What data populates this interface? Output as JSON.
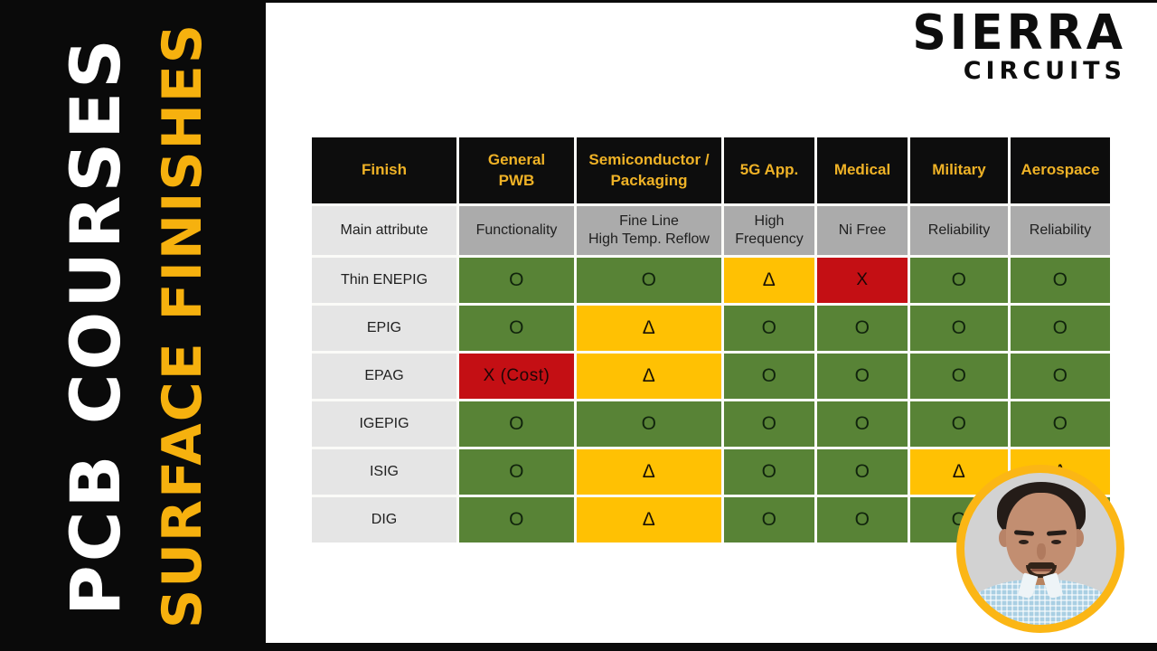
{
  "sidebar": {
    "course_label": "PCB COURSES",
    "topic_label": "SURFACE FINISHES"
  },
  "logo": {
    "brand": "SIERRA",
    "sub_brand": "CIRCUITS"
  },
  "table": {
    "columns": [
      {
        "label": "Finish",
        "attribute": "Main attribute"
      },
      {
        "label": "General\nPWB",
        "attribute": "Functionality"
      },
      {
        "label": "Semiconductor /\nPackaging",
        "attribute": "Fine Line\nHigh Temp. Reflow"
      },
      {
        "label": "5G App.",
        "attribute": "High\nFrequency"
      },
      {
        "label": "Medical",
        "attribute": "Ni Free"
      },
      {
        "label": "Military",
        "attribute": "Reliability"
      },
      {
        "label": "Aerospace",
        "attribute": "Reliability"
      }
    ],
    "rows": [
      {
        "finish": "Thin ENEPIG",
        "cells": [
          {
            "v": "O",
            "c": "green"
          },
          {
            "v": "O",
            "c": "green"
          },
          {
            "v": "Δ",
            "c": "yellow"
          },
          {
            "v": "X",
            "c": "red"
          },
          {
            "v": "O",
            "c": "green"
          },
          {
            "v": "O",
            "c": "green"
          }
        ]
      },
      {
        "finish": "EPIG",
        "cells": [
          {
            "v": "O",
            "c": "green"
          },
          {
            "v": "Δ",
            "c": "yellow"
          },
          {
            "v": "O",
            "c": "green"
          },
          {
            "v": "O",
            "c": "green"
          },
          {
            "v": "O",
            "c": "green"
          },
          {
            "v": "O",
            "c": "green"
          }
        ]
      },
      {
        "finish": "EPAG",
        "cells": [
          {
            "v": "X (Cost)",
            "c": "red"
          },
          {
            "v": "Δ",
            "c": "yellow"
          },
          {
            "v": "O",
            "c": "green"
          },
          {
            "v": "O",
            "c": "green"
          },
          {
            "v": "O",
            "c": "green"
          },
          {
            "v": "O",
            "c": "green"
          }
        ]
      },
      {
        "finish": "IGEPIG",
        "cells": [
          {
            "v": "O",
            "c": "green"
          },
          {
            "v": "O",
            "c": "green"
          },
          {
            "v": "O",
            "c": "green"
          },
          {
            "v": "O",
            "c": "green"
          },
          {
            "v": "O",
            "c": "green"
          },
          {
            "v": "O",
            "c": "green"
          }
        ]
      },
      {
        "finish": "ISIG",
        "cells": [
          {
            "v": "O",
            "c": "green"
          },
          {
            "v": "Δ",
            "c": "yellow"
          },
          {
            "v": "O",
            "c": "green"
          },
          {
            "v": "O",
            "c": "green"
          },
          {
            "v": "Δ",
            "c": "yellow"
          },
          {
            "v": "Δ",
            "c": "yellow"
          }
        ]
      },
      {
        "finish": "DIG",
        "cells": [
          {
            "v": "O",
            "c": "green"
          },
          {
            "v": "Δ",
            "c": "yellow"
          },
          {
            "v": "O",
            "c": "green"
          },
          {
            "v": "O",
            "c": "green"
          },
          {
            "v": "O",
            "c": "green"
          },
          {
            "v": "",
            "c": "green"
          }
        ]
      }
    ]
  },
  "chart_data": {
    "type": "table",
    "columns": [
      "Finish",
      "General PWB",
      "Semiconductor / Packaging",
      "5G App.",
      "Medical",
      "Military",
      "Aerospace"
    ],
    "main_attributes": [
      "Main attribute",
      "Functionality",
      "Fine Line High Temp. Reflow",
      "High Frequency",
      "Ni Free",
      "Reliability",
      "Reliability"
    ],
    "rows": [
      [
        "Thin ENEPIG",
        "O",
        "O",
        "Δ",
        "X",
        "O",
        "O"
      ],
      [
        "EPIG",
        "O",
        "Δ",
        "O",
        "O",
        "O",
        "O"
      ],
      [
        "EPAG",
        "X (Cost)",
        "Δ",
        "O",
        "O",
        "O",
        "O"
      ],
      [
        "IGEPIG",
        "O",
        "O",
        "O",
        "O",
        "O",
        "O"
      ],
      [
        "ISIG",
        "O",
        "Δ",
        "O",
        "O",
        "Δ",
        "Δ"
      ],
      [
        "DIG",
        "O",
        "Δ",
        "O",
        "O",
        "O",
        ""
      ]
    ],
    "cell_color_coding": {
      "O": "green",
      "Δ": "yellow",
      "X": "red",
      "X (Cost)": "red"
    }
  },
  "colors": {
    "green": "#588336",
    "yellow": "#FFC103",
    "red": "#C40F14",
    "header_bg": "#0D0D0D",
    "header_text": "#EFB226",
    "sidebar_bg": "#0A0A0A",
    "sidebar_accent": "#F6B10E",
    "avatar_ring": "#FBB615"
  }
}
